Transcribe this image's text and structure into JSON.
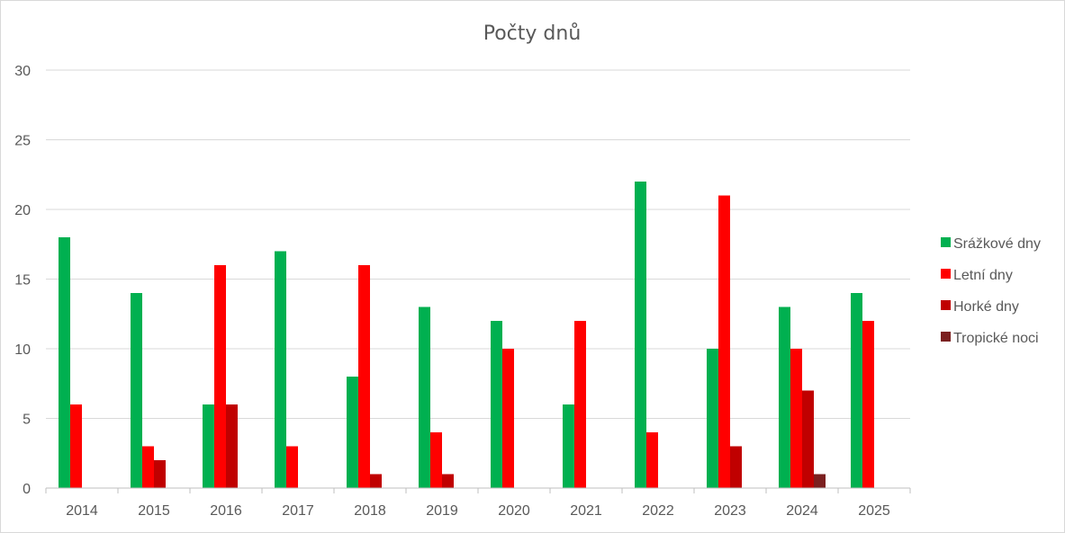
{
  "chart_data": {
    "type": "bar",
    "title": "Počty dnů",
    "xlabel": "",
    "ylabel": "",
    "ylim": [
      0,
      30
    ],
    "yticks": [
      0,
      5,
      10,
      15,
      20,
      25,
      30
    ],
    "grid": true,
    "legend_position": "right",
    "categories": [
      "2014",
      "2015",
      "2016",
      "2017",
      "2018",
      "2019",
      "2020",
      "2021",
      "2022",
      "2023",
      "2024",
      "2025"
    ],
    "series": [
      {
        "name": "Srážkové dny",
        "color": "#00b050",
        "values": [
          18,
          14,
          6,
          17,
          8,
          13,
          12,
          6,
          22,
          10,
          13,
          14
        ]
      },
      {
        "name": "Letní dny",
        "color": "#ff0000",
        "values": [
          6,
          3,
          16,
          3,
          16,
          4,
          10,
          12,
          4,
          21,
          10,
          12
        ]
      },
      {
        "name": "Horké dny",
        "color": "#c00000",
        "values": [
          0,
          2,
          6,
          0,
          1,
          1,
          0,
          0,
          0,
          3,
          7,
          0
        ]
      },
      {
        "name": "Tropické noci",
        "color": "#7b2020",
        "values": [
          0,
          0,
          0,
          0,
          0,
          0,
          0,
          0,
          0,
          0,
          1,
          0
        ]
      }
    ]
  }
}
